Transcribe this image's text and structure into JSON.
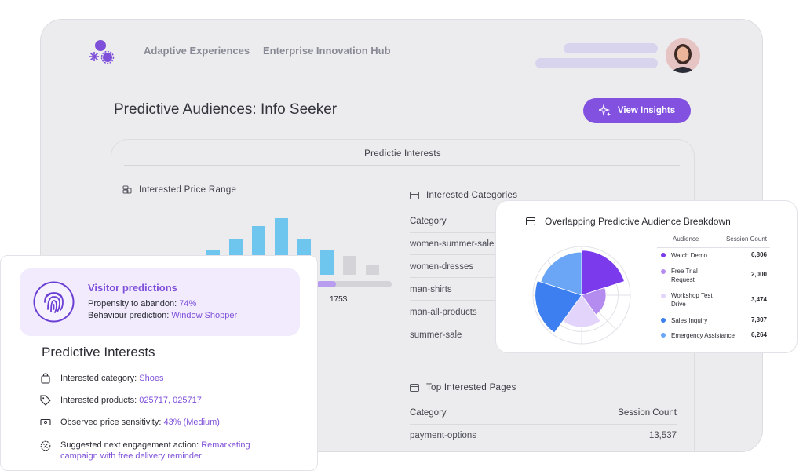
{
  "header": {
    "nav": [
      "Adaptive Experiences",
      "Enterprise Innovation Hub"
    ]
  },
  "page": {
    "title": "Predictive Audiences: Info Seeker",
    "insights_button": "View Insights"
  },
  "card": {
    "title": "Predictie Interests",
    "price_range": {
      "heading": "Interested Price Range",
      "marker_label": "175$",
      "bars": [
        {
          "value": 0.28,
          "color": "#6ec6ee"
        },
        {
          "value": 0.42,
          "color": "#6ec6ee"
        },
        {
          "value": 0.56,
          "color": "#6ec6ee"
        },
        {
          "value": 0.65,
          "color": "#6ec6ee"
        },
        {
          "value": 0.42,
          "color": "#6ec6ee"
        },
        {
          "value": 0.28,
          "color": "#6ec6ee"
        },
        {
          "value": 0.22,
          "color": "#d4d4d8"
        },
        {
          "value": 0.12,
          "color": "#d4d4d8"
        }
      ],
      "slider_fill": 0.28
    },
    "categories": {
      "heading": "Interested Categories",
      "column": "Category",
      "items": [
        "women-summer-sale",
        "women-dresses",
        "man-shirts",
        "man-all-products",
        "summer-sale"
      ]
    },
    "top_pages": {
      "heading": "Top Interested Pages",
      "columns": [
        "Category",
        "Session Count"
      ],
      "rows": [
        {
          "page": "payment-options",
          "count": "13,537"
        }
      ]
    }
  },
  "visitor": {
    "title": "Visitor predictions",
    "abandon_label": "Propensity to abandon:",
    "abandon_value": "74%",
    "behaviour_label": "Behaviour prediction:",
    "behaviour_value": "Window Shopper"
  },
  "predictive_interests": {
    "title": "Predictive Interests",
    "rows": [
      {
        "icon": "bag-icon",
        "label": "Interested category:",
        "value": "Shoes"
      },
      {
        "icon": "tag-icon",
        "label": "Interested products:",
        "value": "025717, 025717"
      },
      {
        "icon": "banknote-icon",
        "label": "Observed price sensitivity:",
        "value": "43% (Medium)"
      },
      {
        "icon": "percent-badge-icon",
        "label": "Suggested next engagement action:",
        "value": "Remarketing",
        "value2": "campaign with free delivery reminder"
      }
    ]
  },
  "breakdown": {
    "title": "Overlapping Predictive Audience Breakdown",
    "columns": [
      "Audience",
      "Session Count"
    ],
    "rows": [
      {
        "name": "Watch Demo",
        "count": "6,806",
        "color": "#7c3aed"
      },
      {
        "name": "Free Trial Request",
        "count": "2,000",
        "color": "#b48cf0"
      },
      {
        "name": "Workshop Test Drive",
        "count": "3,474",
        "color": "#e3d4fb"
      },
      {
        "name": "Sales Inquiry",
        "count": "7,307",
        "color": "#3d7ff0"
      },
      {
        "name": "Emergency Assistance",
        "count": "6,264",
        "color": "#6aa6f5"
      }
    ]
  }
}
